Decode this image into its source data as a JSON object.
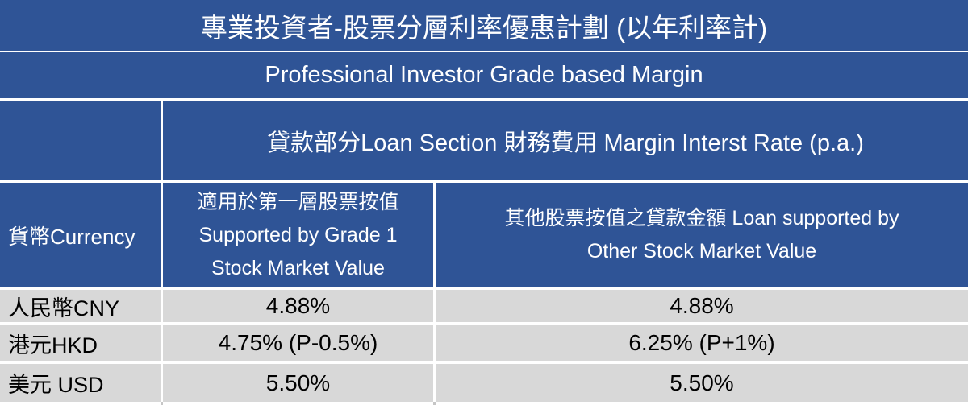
{
  "colors": {
    "header_blue": "#2F5496",
    "row_gray": "#D8D8D8",
    "gridline_white": "#FFFFFF",
    "header_text": "#FFFFFF",
    "data_text": "#000000"
  },
  "table": {
    "title": "專業投資者-股票分層利率優惠計劃 (以年利率計)",
    "subtitle": "Professional Investor Grade based Margin",
    "loan_section_header": "貸款部分Loan Section 財務費用 Margin Interst Rate (p.a.)",
    "columns": {
      "currency": "貨幣Currency",
      "grade1_lines": [
        "適用於第一層股票按值",
        "Supported by Grade 1",
        "Stock Market Value"
      ],
      "other_lines": [
        "其他股票按值之貸款金額 Loan supported by",
        "Other Stock Market Value"
      ]
    },
    "rows": [
      {
        "currency": "人民幣CNY",
        "grade1_rate": "4.88%",
        "other_rate": "4.88%"
      },
      {
        "currency": "港元HKD",
        "grade1_rate": "4.75% (P-0.5%)",
        "other_rate": "6.25% (P+1%)"
      },
      {
        "currency": "美元 USD",
        "grade1_rate": "5.50%",
        "other_rate": "5.50%"
      }
    ]
  }
}
